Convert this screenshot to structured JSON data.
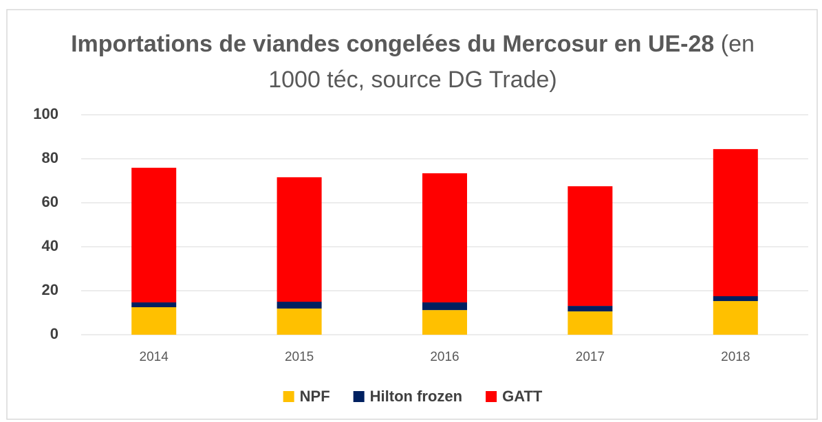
{
  "chart_data": {
    "type": "stacked_bar",
    "title": "Importations de viandes congelées du Mercosur en UE-28",
    "subtitle": "(en 1000 téc, source DG Trade)",
    "categories": [
      "2014",
      "2015",
      "2016",
      "2017",
      "2018"
    ],
    "series": [
      {
        "name": "NPF",
        "color": "#ffc000",
        "values": [
          12.5,
          11.9,
          11.2,
          10.6,
          15.3
        ]
      },
      {
        "name": "Hilton frozen",
        "color": "#002060",
        "values": [
          2.2,
          3.1,
          3.5,
          2.5,
          2.2
        ]
      },
      {
        "name": "GATT",
        "color": "#ff0000",
        "values": [
          61.2,
          56.6,
          58.7,
          54.4,
          66.9
        ]
      }
    ],
    "ylim": [
      0,
      100
    ],
    "yticks": [
      0,
      20,
      40,
      60,
      80,
      100
    ],
    "grid": true,
    "legend": "bottom"
  }
}
